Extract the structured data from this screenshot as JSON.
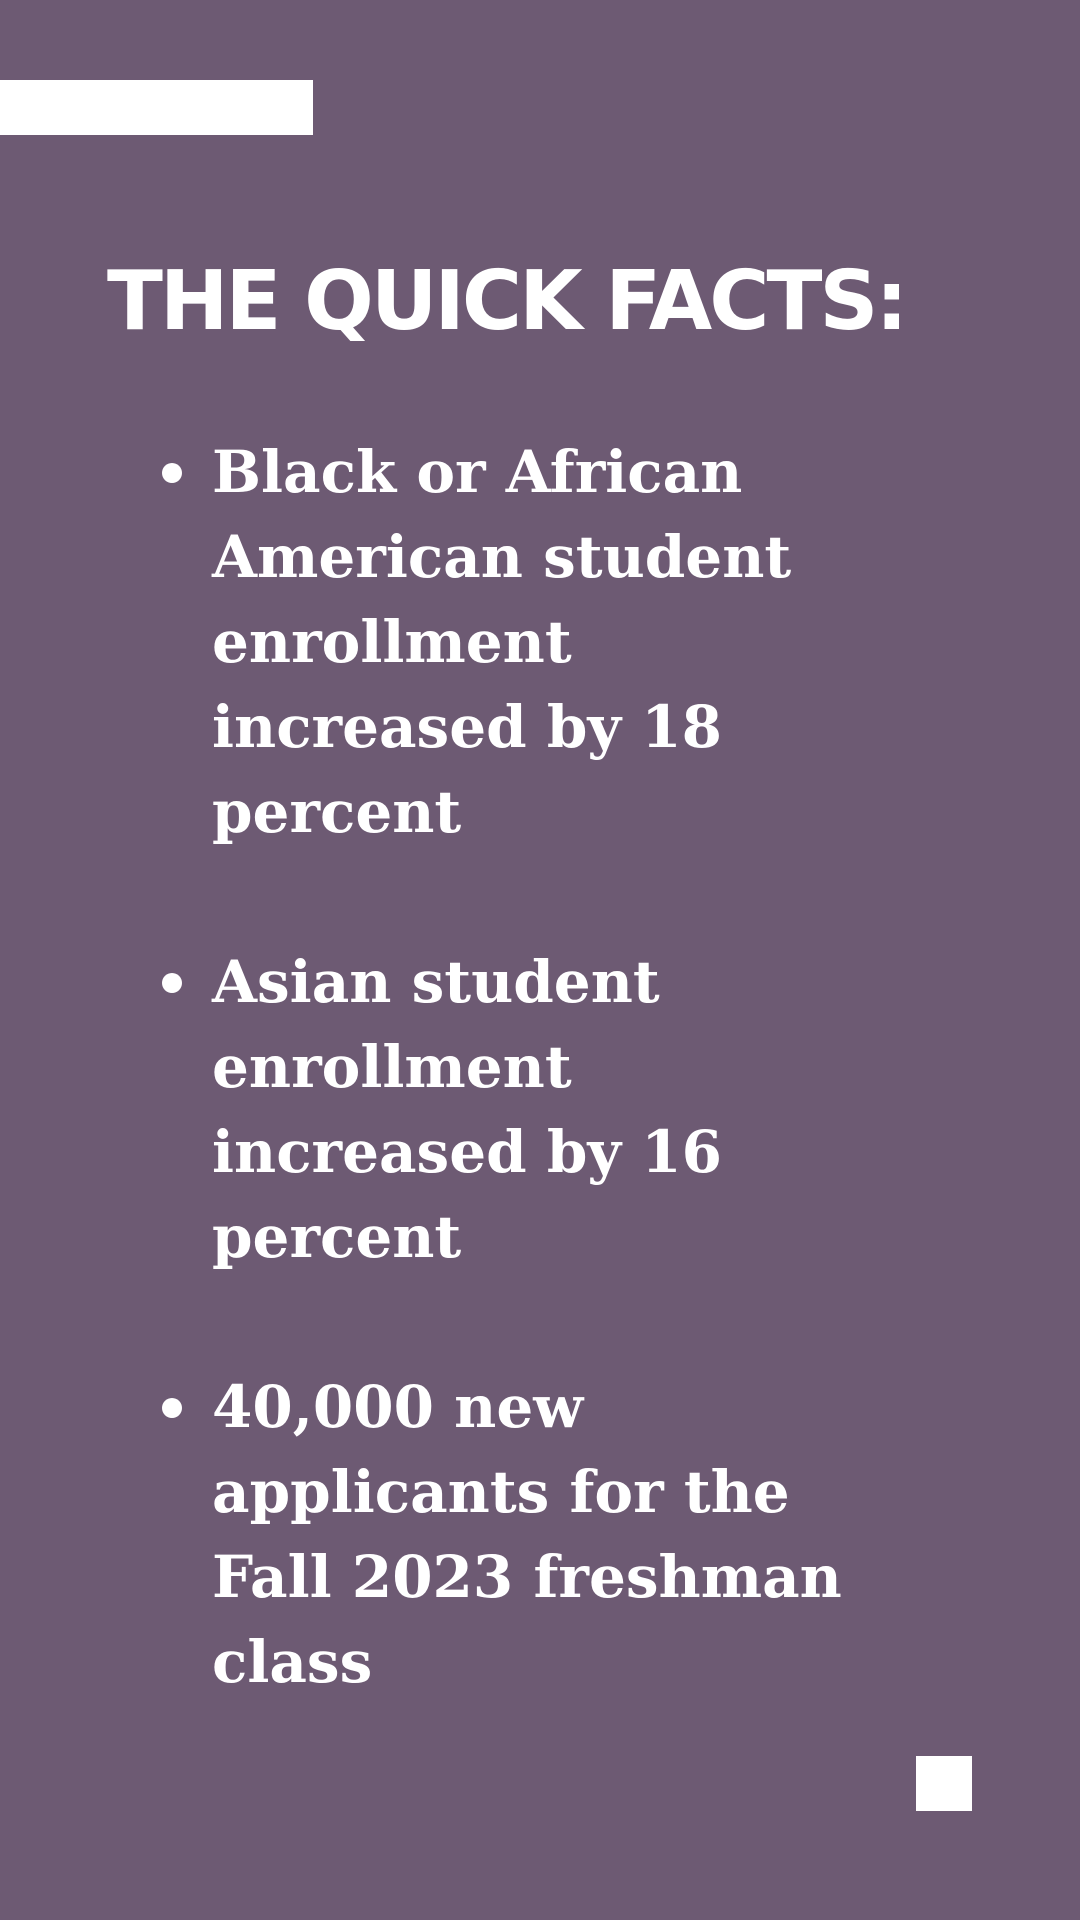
{
  "colors": {
    "background": "#6d5a73",
    "text": "#ffffff",
    "accent": "#ffffff"
  },
  "title": "THE QUICK FACTS:",
  "facts": [
    {
      "lines": [
        "Black or African",
        "American student",
        "enrollment",
        "increased by 18",
        "percent"
      ]
    },
    {
      "lines": [
        "Asian student",
        "enrollment",
        "increased by 16",
        "percent"
      ]
    },
    {
      "lines": [
        "40,000 new",
        "applicants for the",
        "Fall 2023 freshman",
        "class"
      ]
    }
  ]
}
